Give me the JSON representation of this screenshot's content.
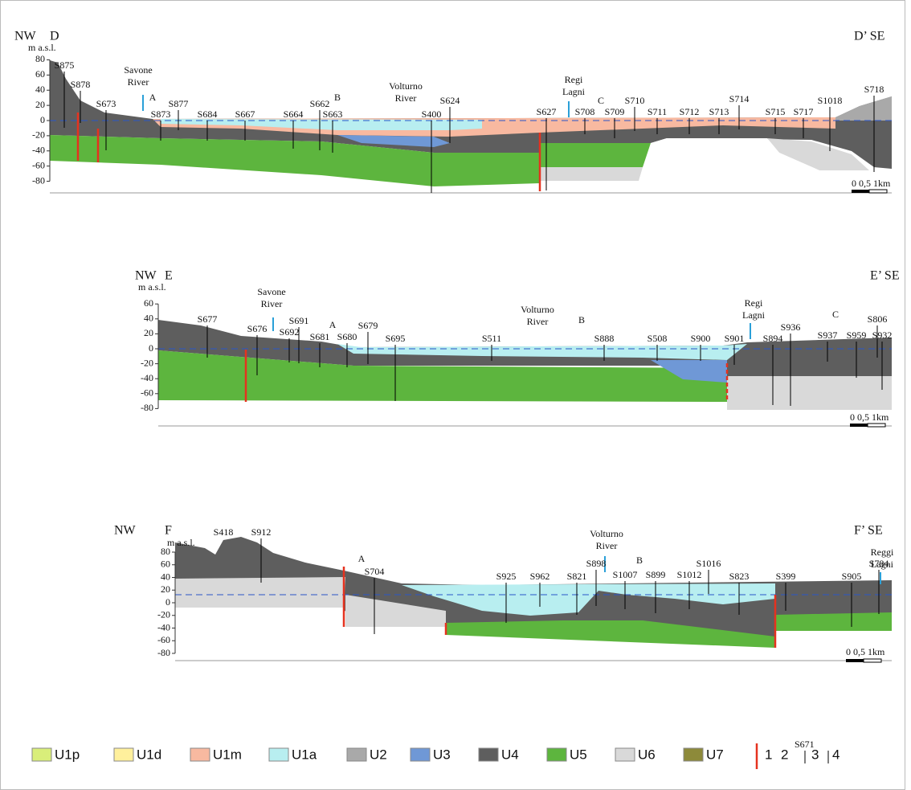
{
  "sections": [
    {
      "left": "NW",
      "letter": "D",
      "unit": "m a.s.l.",
      "right": "D’ SE",
      "scale": "0 0,5 1km",
      "yticks": [
        80,
        60,
        40,
        20,
        0,
        -20,
        -40,
        -60,
        -80
      ],
      "places": [
        {
          "lines": [
            "Savone",
            "River"
          ]
        },
        {
          "lines": [
            "A"
          ]
        },
        {
          "lines": [
            "B"
          ]
        },
        {
          "lines": [
            "Volturno",
            "River"
          ]
        },
        {
          "lines": [
            "Regi",
            "Lagni"
          ]
        },
        {
          "lines": [
            "C"
          ]
        }
      ],
      "boreholes": [
        "S875",
        "S878",
        "S673",
        "S877",
        "S873",
        "S684",
        "S667",
        "S664",
        "S662",
        "S663",
        "S400",
        "S624",
        "S627",
        "S708",
        "S709",
        "S710",
        "S711",
        "S712",
        "S713",
        "S714",
        "S715",
        "S717",
        "S1018",
        "S718"
      ]
    },
    {
      "left": "NW",
      "letter": "E",
      "unit": "m a.s.l.",
      "right": "E’ SE",
      "scale": "0 0,5 1km",
      "yticks": [
        60,
        40,
        20,
        0,
        -20,
        -40,
        -60,
        -80
      ],
      "places": [
        {
          "lines": [
            "Savone",
            "River"
          ]
        },
        {
          "lines": [
            "A"
          ]
        },
        {
          "lines": [
            "Volturno",
            "River"
          ]
        },
        {
          "lines": [
            "B"
          ]
        },
        {
          "lines": [
            "Regi",
            "Lagni"
          ]
        },
        {
          "lines": [
            "C"
          ]
        }
      ],
      "boreholes": [
        "S677",
        "S676",
        "S691",
        "S692",
        "S681",
        "S680",
        "S679",
        "S695",
        "S511",
        "S888",
        "S508",
        "S900",
        "S901",
        "S894",
        "S936",
        "S937",
        "S959",
        "S932",
        "S806"
      ]
    },
    {
      "left": "NW",
      "letter": "F",
      "unit": "m a.s.l.",
      "right": "F’ SE",
      "scale": "0 0,5 1km",
      "yticks": [
        80,
        60,
        40,
        20,
        0,
        -20,
        -40,
        -60,
        -80
      ],
      "places": [
        {
          "lines": [
            "A"
          ]
        },
        {
          "lines": [
            "Volturno",
            "River"
          ]
        },
        {
          "lines": [
            "B"
          ]
        },
        {
          "lines": [
            "Reggi",
            "Lagni"
          ]
        }
      ],
      "boreholes": [
        "S418",
        "S912",
        "S704",
        "S925",
        "S962",
        "S821",
        "S898",
        "S1007",
        "S899",
        "S1012",
        "S1016",
        "S823",
        "S399",
        "S905",
        "S784"
      ]
    }
  ],
  "legend": {
    "units": [
      "U1p",
      "U1d",
      "U1m",
      "U1a",
      "U2",
      "U3",
      "U4",
      "U5",
      "U6",
      "U7"
    ],
    "symbols": [
      "1",
      "2",
      "S671",
      "3",
      "4"
    ]
  }
}
